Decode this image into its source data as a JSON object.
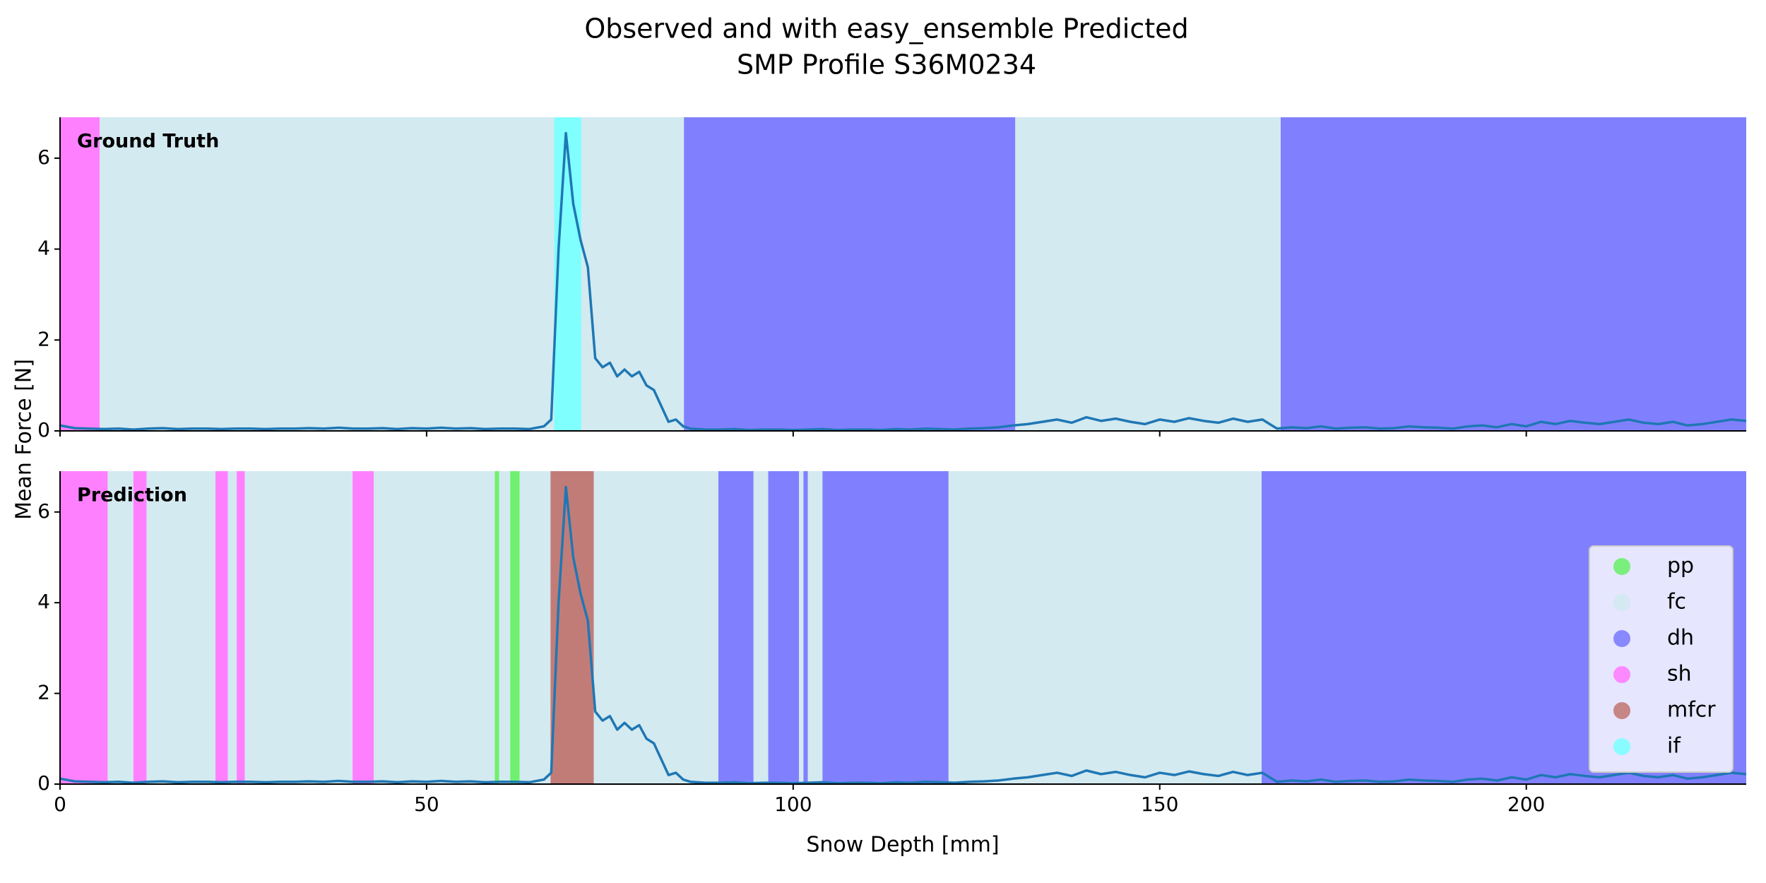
{
  "chart_data": {
    "type": "line",
    "title": "Observed and with easy_ensemble Predicted",
    "subtitle": "SMP Profile S36M0234",
    "xlabel": "Snow Depth [mm]",
    "ylabel": "Mean Force [N]",
    "xlim": [
      0,
      230
    ],
    "xticks": [
      0,
      50,
      100,
      150,
      200
    ],
    "ylim": [
      0,
      6.9
    ],
    "yticks": [
      0,
      2,
      4,
      6
    ],
    "color": "#1f77b4",
    "x": [
      0,
      2,
      4,
      6,
      8,
      10,
      12,
      14,
      16,
      18,
      20,
      22,
      24,
      26,
      28,
      30,
      32,
      34,
      36,
      38,
      40,
      42,
      44,
      46,
      48,
      50,
      52,
      54,
      56,
      58,
      60,
      62,
      64,
      66,
      67,
      68,
      69,
      70,
      71,
      72,
      73,
      74,
      75,
      76,
      77,
      78,
      79,
      80,
      81,
      82,
      83,
      84,
      85,
      86,
      88,
      90,
      92,
      94,
      96,
      98,
      100,
      102,
      104,
      106,
      108,
      110,
      112,
      114,
      116,
      118,
      120,
      122,
      124,
      126,
      128,
      130,
      132,
      134,
      136,
      138,
      140,
      142,
      144,
      146,
      148,
      150,
      152,
      154,
      156,
      158,
      160,
      162,
      164,
      166,
      168,
      170,
      172,
      174,
      176,
      178,
      180,
      182,
      184,
      186,
      188,
      190,
      192,
      194,
      196,
      198,
      200,
      202,
      204,
      206,
      208,
      210,
      212,
      214,
      216,
      218,
      220,
      222,
      224,
      226,
      228,
      230
    ],
    "values": [
      0.12,
      0.06,
      0.05,
      0.04,
      0.05,
      0.03,
      0.05,
      0.06,
      0.04,
      0.05,
      0.05,
      0.04,
      0.05,
      0.05,
      0.04,
      0.05,
      0.05,
      0.06,
      0.05,
      0.07,
      0.05,
      0.05,
      0.06,
      0.04,
      0.06,
      0.05,
      0.07,
      0.05,
      0.06,
      0.04,
      0.05,
      0.05,
      0.04,
      0.1,
      0.25,
      4.0,
      6.55,
      5.0,
      4.2,
      3.6,
      1.6,
      1.4,
      1.5,
      1.2,
      1.35,
      1.2,
      1.3,
      1.0,
      0.9,
      0.55,
      0.2,
      0.25,
      0.1,
      0.05,
      0.03,
      0.03,
      0.04,
      0.02,
      0.03,
      0.03,
      0.02,
      0.03,
      0.04,
      0.02,
      0.03,
      0.03,
      0.02,
      0.04,
      0.03,
      0.05,
      0.04,
      0.03,
      0.05,
      0.06,
      0.08,
      0.12,
      0.15,
      0.2,
      0.25,
      0.18,
      0.3,
      0.22,
      0.27,
      0.2,
      0.15,
      0.25,
      0.2,
      0.28,
      0.22,
      0.18,
      0.27,
      0.2,
      0.25,
      0.05,
      0.08,
      0.06,
      0.1,
      0.05,
      0.07,
      0.08,
      0.05,
      0.06,
      0.1,
      0.08,
      0.07,
      0.05,
      0.1,
      0.12,
      0.08,
      0.15,
      0.1,
      0.2,
      0.15,
      0.22,
      0.18,
      0.15,
      0.2,
      0.25,
      0.18,
      0.15,
      0.2,
      0.12,
      0.15,
      0.2,
      0.25,
      0.22
    ],
    "classes": [
      {
        "name": "pp",
        "color": "#70f070"
      },
      {
        "name": "fc",
        "color": "#d3eaf0"
      },
      {
        "name": "dh",
        "color": "#8080ff"
      },
      {
        "name": "sh",
        "color": "#ff80ff"
      },
      {
        "name": "mfcr",
        "color": "#c27c78"
      },
      {
        "name": "if",
        "color": "#80ffff"
      }
    ],
    "panels": [
      {
        "label": "Ground Truth",
        "layers": [
          {
            "class": "sh",
            "start": 0,
            "end": 5.4
          },
          {
            "class": "fc",
            "start": 5.4,
            "end": 67.4
          },
          {
            "class": "if",
            "start": 67.4,
            "end": 71.1
          },
          {
            "class": "fc",
            "start": 71.1,
            "end": 85.1
          },
          {
            "class": "dh",
            "start": 85.1,
            "end": 130.3
          },
          {
            "class": "fc",
            "start": 130.3,
            "end": 166.5
          },
          {
            "class": "dh",
            "start": 166.5,
            "end": 230
          }
        ]
      },
      {
        "label": "Prediction",
        "legend": "lower right",
        "layers": [
          {
            "class": "sh",
            "start": 0,
            "end": 6.5
          },
          {
            "class": "fc",
            "start": 6.5,
            "end": 10
          },
          {
            "class": "sh",
            "start": 10,
            "end": 11.8
          },
          {
            "class": "fc",
            "start": 11.8,
            "end": 21.2
          },
          {
            "class": "sh",
            "start": 21.2,
            "end": 22.9
          },
          {
            "class": "fc",
            "start": 22.9,
            "end": 24.1
          },
          {
            "class": "sh",
            "start": 24.1,
            "end": 25.2
          },
          {
            "class": "fc",
            "start": 25.2,
            "end": 39.9
          },
          {
            "class": "sh",
            "start": 39.9,
            "end": 42.8
          },
          {
            "class": "fc",
            "start": 42.8,
            "end": 59.3
          },
          {
            "class": "pp",
            "start": 59.3,
            "end": 59.9
          },
          {
            "class": "fc",
            "start": 59.9,
            "end": 61.4
          },
          {
            "class": "pp",
            "start": 61.4,
            "end": 62.7
          },
          {
            "class": "fc",
            "start": 62.7,
            "end": 66.9
          },
          {
            "class": "mfcr",
            "start": 66.9,
            "end": 72.8
          },
          {
            "class": "fc",
            "start": 72.8,
            "end": 89.8
          },
          {
            "class": "dh",
            "start": 89.8,
            "end": 94.6
          },
          {
            "class": "fc",
            "start": 94.6,
            "end": 96.6
          },
          {
            "class": "dh",
            "start": 96.6,
            "end": 100.8
          },
          {
            "class": "fc",
            "start": 100.8,
            "end": 101.4
          },
          {
            "class": "dh",
            "start": 101.4,
            "end": 102
          },
          {
            "class": "fc",
            "start": 102,
            "end": 104
          },
          {
            "class": "dh",
            "start": 104,
            "end": 121.2
          },
          {
            "class": "fc",
            "start": 121.2,
            "end": 163.9
          },
          {
            "class": "dh",
            "start": 163.9,
            "end": 230
          }
        ]
      }
    ]
  }
}
